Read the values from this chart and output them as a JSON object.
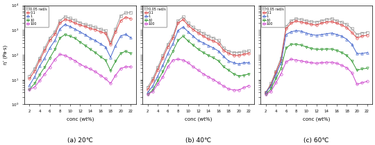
{
  "panels": [
    {
      "label": "(a) 20℃",
      "series": [
        {
          "freq": "0.05 rad/s",
          "color": "#999999",
          "marker": "s",
          "x": [
            2,
            3,
            4,
            5,
            6,
            7,
            8,
            9,
            10,
            11,
            12,
            13,
            14,
            15,
            16,
            17,
            18,
            19,
            20,
            21,
            22
          ],
          "y": [
            14,
            28,
            75,
            190,
            480,
            850,
            2400,
            3500,
            3000,
            2500,
            2000,
            1700,
            1500,
            1300,
            1100,
            950,
            320,
            1100,
            3800,
            5000,
            5200
          ]
        },
        {
          "freq": "0.1",
          "color": "#dd4444",
          "marker": "o",
          "x": [
            2,
            3,
            4,
            5,
            6,
            7,
            8,
            9,
            10,
            11,
            12,
            13,
            14,
            15,
            16,
            17,
            18,
            19,
            20,
            21,
            22
          ],
          "y": [
            11,
            22,
            60,
            150,
            380,
            680,
            1900,
            2700,
            2400,
            1900,
            1600,
            1400,
            1150,
            1050,
            850,
            750,
            260,
            850,
            2400,
            3300,
            2900
          ]
        },
        {
          "freq": "1",
          "color": "#4466cc",
          "marker": "^",
          "x": [
            2,
            3,
            4,
            5,
            6,
            7,
            8,
            9,
            10,
            11,
            12,
            13,
            14,
            15,
            16,
            17,
            18,
            19,
            20,
            21,
            22
          ],
          "y": [
            6,
            13,
            35,
            75,
            190,
            380,
            1100,
            1700,
            1400,
            1100,
            850,
            650,
            480,
            380,
            280,
            210,
            80,
            240,
            580,
            680,
            490
          ]
        },
        {
          "freq": "10",
          "color": "#339933",
          "marker": "v",
          "x": [
            2,
            3,
            4,
            5,
            6,
            7,
            8,
            9,
            10,
            11,
            12,
            13,
            14,
            15,
            16,
            17,
            18,
            19,
            20,
            21,
            22
          ],
          "y": [
            4,
            7,
            16,
            32,
            75,
            165,
            480,
            660,
            570,
            470,
            330,
            240,
            170,
            125,
            85,
            62,
            23,
            55,
            115,
            140,
            115
          ]
        },
        {
          "freq": "100",
          "color": "#cc44cc",
          "marker": "o",
          "x": [
            2,
            3,
            4,
            5,
            6,
            7,
            8,
            9,
            10,
            11,
            12,
            13,
            14,
            15,
            16,
            17,
            18,
            19,
            20,
            21,
            22
          ],
          "y": [
            4,
            5,
            9,
            17,
            32,
            65,
            105,
            95,
            75,
            58,
            42,
            33,
            27,
            21,
            15,
            11,
            7,
            15,
            28,
            33,
            33
          ]
        }
      ]
    },
    {
      "label": "(b) 40℃",
      "series": [
        {
          "freq": "0.05 rad/s",
          "color": "#999999",
          "marker": "s",
          "x": [
            2,
            3,
            4,
            5,
            6,
            7,
            8,
            9,
            10,
            11,
            12,
            13,
            14,
            15,
            16,
            17,
            18,
            19,
            20,
            21,
            22
          ],
          "y": [
            5,
            11,
            32,
            95,
            270,
            580,
            2400,
            3400,
            1900,
            1300,
            950,
            750,
            580,
            480,
            380,
            190,
            140,
            125,
            125,
            135,
            145
          ]
        },
        {
          "freq": "0.1",
          "color": "#dd4444",
          "marker": "o",
          "x": [
            2,
            3,
            4,
            5,
            6,
            7,
            8,
            9,
            10,
            11,
            12,
            13,
            14,
            15,
            16,
            17,
            18,
            19,
            20,
            21,
            22
          ],
          "y": [
            4,
            9,
            25,
            75,
            210,
            480,
            1900,
            2700,
            1550,
            1050,
            760,
            570,
            430,
            360,
            285,
            152,
            115,
            95,
            95,
            105,
            115
          ]
        },
        {
          "freq": "1",
          "color": "#4466cc",
          "marker": "^",
          "x": [
            2,
            3,
            4,
            5,
            6,
            7,
            8,
            9,
            10,
            11,
            12,
            13,
            14,
            15,
            16,
            17,
            18,
            19,
            20,
            21,
            22
          ],
          "y": [
            3,
            5.5,
            14,
            38,
            115,
            285,
            950,
            1350,
            860,
            570,
            380,
            305,
            238,
            190,
            143,
            86,
            57,
            48,
            43,
            48,
            48
          ]
        },
        {
          "freq": "10",
          "color": "#339933",
          "marker": "v",
          "x": [
            2,
            3,
            4,
            5,
            6,
            7,
            8,
            9,
            10,
            11,
            12,
            13,
            14,
            15,
            16,
            17,
            18,
            19,
            20,
            21,
            22
          ],
          "y": [
            2.5,
            3.8,
            9,
            21,
            57,
            143,
            380,
            570,
            362,
            248,
            167,
            124,
            95,
            76,
            57,
            33,
            24,
            17,
            14,
            15,
            17
          ]
        },
        {
          "freq": "100",
          "color": "#cc44cc",
          "marker": "o",
          "x": [
            2,
            3,
            4,
            5,
            6,
            7,
            8,
            9,
            10,
            11,
            12,
            13,
            14,
            15,
            16,
            17,
            18,
            19,
            20,
            21,
            22
          ],
          "y": [
            2.5,
            3.3,
            6.5,
            13,
            33,
            62,
            67,
            62,
            48,
            33,
            24,
            17,
            13,
            10,
            7.5,
            5.5,
            4.2,
            3.8,
            3.8,
            4.8,
            5.7
          ]
        }
      ]
    },
    {
      "label": "(c) 60℃",
      "series": [
        {
          "freq": "0.05 rad/s",
          "color": "#999999",
          "marker": "s",
          "x": [
            2,
            3,
            4,
            5,
            6,
            7,
            8,
            9,
            10,
            11,
            12,
            13,
            14,
            15,
            16,
            17,
            18,
            19,
            20,
            21,
            22
          ],
          "y": [
            3,
            7,
            22,
            75,
            1400,
            2400,
            2900,
            2700,
            2400,
            2200,
            2100,
            2400,
            2700,
            2900,
            2400,
            2100,
            1700,
            1150,
            670,
            760,
            810
          ]
        },
        {
          "freq": "0.1",
          "color": "#dd4444",
          "marker": "o",
          "x": [
            2,
            3,
            4,
            5,
            6,
            7,
            8,
            9,
            10,
            11,
            12,
            13,
            14,
            15,
            16,
            17,
            18,
            19,
            20,
            21,
            22
          ],
          "y": [
            3,
            6,
            20,
            60,
            1150,
            1900,
            2300,
            2100,
            1900,
            1700,
            1600,
            1900,
            2100,
            2200,
            1900,
            1600,
            1250,
            810,
            480,
            570,
            620
          ]
        },
        {
          "freq": "1",
          "color": "#4466cc",
          "marker": "^",
          "x": [
            2,
            3,
            4,
            5,
            6,
            7,
            8,
            9,
            10,
            11,
            12,
            13,
            14,
            15,
            16,
            17,
            18,
            19,
            20,
            21,
            22
          ],
          "y": [
            3,
            5.5,
            16,
            47,
            660,
            860,
            950,
            905,
            762,
            667,
            619,
            667,
            714,
            762,
            667,
            571,
            429,
            267,
            114,
            114,
            124
          ]
        },
        {
          "freq": "10",
          "color": "#339933",
          "marker": "v",
          "x": [
            2,
            3,
            4,
            5,
            6,
            7,
            8,
            9,
            10,
            11,
            12,
            13,
            14,
            15,
            16,
            17,
            18,
            19,
            20,
            21,
            22
          ],
          "y": [
            2.5,
            4.2,
            11,
            28,
            190,
            267,
            267,
            248,
            210,
            181,
            167,
            167,
            171,
            171,
            152,
            124,
            95,
            57,
            24,
            27,
            29
          ]
        },
        {
          "freq": "100",
          "color": "#cc44cc",
          "marker": "o",
          "x": [
            2,
            3,
            4,
            5,
            6,
            7,
            8,
            9,
            10,
            11,
            12,
            13,
            14,
            15,
            16,
            17,
            18,
            19,
            20,
            21,
            22
          ],
          "y": [
            2.5,
            3.3,
            7.5,
            17,
            52,
            67,
            62,
            57,
            52,
            48,
            46,
            48,
            50,
            50,
            46,
            38,
            30,
            19,
            6.5,
            7.5,
            8.5
          ]
        }
      ]
    }
  ],
  "ylabel": "η’ (Pa·s)",
  "xlabel": "conc (wt%)",
  "ylim": [
    1,
    10000
  ],
  "xlim": [
    1,
    23
  ],
  "xticks": [
    2,
    4,
    6,
    8,
    10,
    12,
    14,
    16,
    18,
    20,
    22
  ],
  "legend_labels": [
    "0.05 rad/s",
    "0.1",
    "1",
    "10",
    "100"
  ],
  "legend_colors": [
    "#999999",
    "#dd4444",
    "#4466cc",
    "#339933",
    "#cc44cc"
  ],
  "legend_markers": [
    "s",
    "o",
    "^",
    "v",
    "o"
  ],
  "captions": [
    "(a) 20℃",
    "(b) 40℃",
    "(c) 60℃"
  ],
  "markersize": 2.5,
  "linewidth": 0.7
}
